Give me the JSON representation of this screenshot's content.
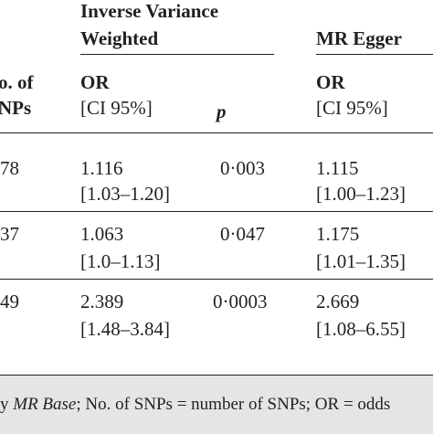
{
  "header": {
    "ivw_line1": "Inverse Variance",
    "ivw_line2": "Weighted",
    "egger": "MR Egger",
    "no_of_line1": "o. of",
    "no_of_line2": "NPs",
    "or_ivw": "OR",
    "ci_ivw": "[CI 95%]",
    "p": "p",
    "or_egger": "OR",
    "ci_egger": "[CI 95%]"
  },
  "rows": [
    {
      "snps": "78",
      "ivw_or": "1.116",
      "ivw_ci": "[1.03–1.20]",
      "p": "0·003",
      "egger_or": "1.115",
      "egger_ci": "[1.00–1.23]"
    },
    {
      "snps": "37",
      "ivw_or": "1.063",
      "ivw_ci": "[1.0–1.13]",
      "p": "0·047",
      "egger_or": "1.175",
      "egger_ci": "[1.01–1.35]"
    },
    {
      "snps": "49",
      "ivw_or": "2.389",
      "ivw_ci": "[1.48–3.84]",
      "p": "0·0003",
      "egger_or": "2.669",
      "egger_ci": "[1.08–6.55]"
    }
  ],
  "footnote": {
    "prefix": "y ",
    "italic": "MR Base",
    "rest": "; No. of SNPs = number of SNPs; OR = odds"
  }
}
